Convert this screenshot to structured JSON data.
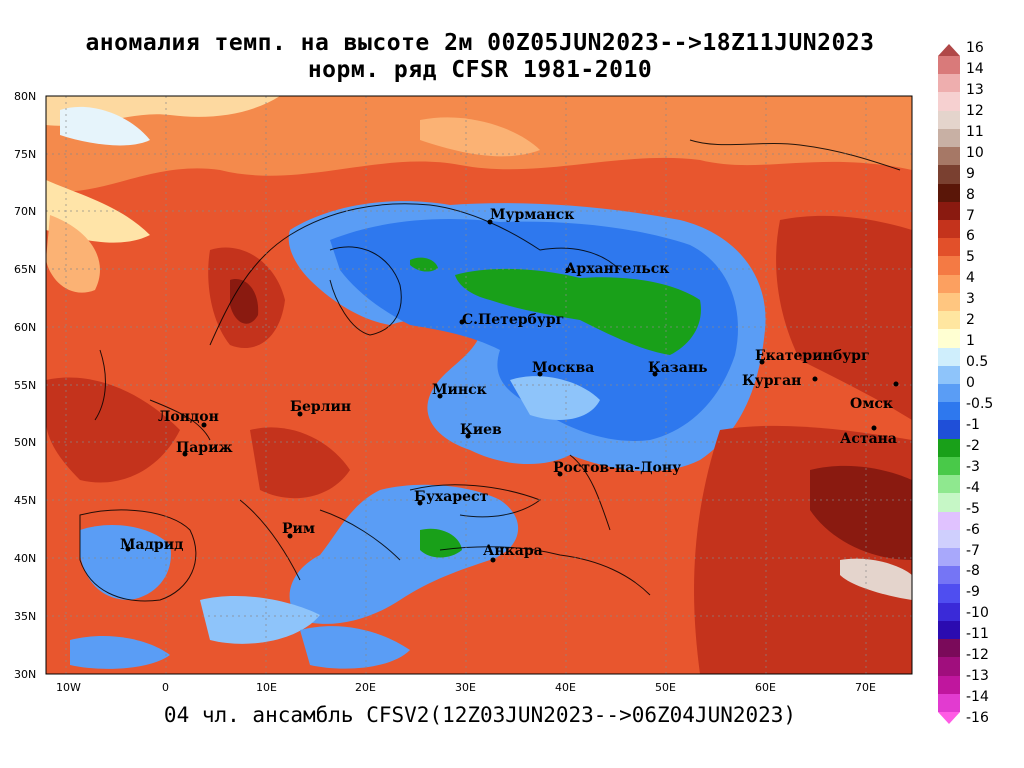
{
  "title": {
    "line1": "аномалия темп. на высоте 2м 00Z05JUN2023-->18Z11JUN2023",
    "line2": "норм. ряд CFSR 1981-2010"
  },
  "footer": "04 чл. ансамбль CFSV2(12Z03JUN2023-->06Z04JUN2023)",
  "map": {
    "lat_labels": [
      "80N",
      "75N",
      "70N",
      "65N",
      "60N",
      "55N",
      "50N",
      "45N",
      "40N",
      "35N",
      "30N"
    ],
    "lon_labels": [
      "10W",
      "0",
      "10E",
      "20E",
      "30E",
      "40E",
      "50E",
      "60E",
      "70E"
    ],
    "cities": [
      "Мурманск",
      "Архангельск",
      "С.Петербург",
      "Москва",
      "Казань",
      "Екатеринбург",
      "Курган",
      "Омск",
      "Астана",
      "Минск",
      "Киев",
      "Берлин",
      "Лондон",
      "Париж",
      "Ростов-на-Дону",
      "Бухарест",
      "Анкара",
      "Рим",
      "Мадрид"
    ]
  },
  "colorbar": {
    "labels": [
      "16",
      "14",
      "13",
      "12",
      "11",
      "10",
      "9",
      "8",
      "7",
      "6",
      "5",
      "4",
      "3",
      "2",
      "1",
      "0.5",
      "0",
      "-0.5",
      "-1",
      "-2",
      "-3",
      "-4",
      "-5",
      "-6",
      "-7",
      "-8",
      "-9",
      "-10",
      "-11",
      "-12",
      "-13",
      "-14",
      "-16"
    ],
    "colors": [
      "#ff5ce5",
      "#e23bd0",
      "#c0169e",
      "#a00e7d",
      "#7a0a5a",
      "#2b0bb0",
      "#3a2ad8",
      "#4f4ef0",
      "#7575f5",
      "#a8a8fb",
      "#cfcffd",
      "#e0c2ff",
      "#c6f7c6",
      "#8fe88f",
      "#49c949",
      "#19a019",
      "#1f4fd8",
      "#2e78ee",
      "#5a9df5",
      "#8ec4fa",
      "#cfeefc",
      "#ffffd2",
      "#ffe6a0",
      "#ffc680",
      "#fca060",
      "#f47a44",
      "#e2502a",
      "#c4331c",
      "#8a1a10",
      "#5a1608",
      "#7a4030",
      "#a67866",
      "#c8b0a4",
      "#e4d4cc",
      "#f6d0d0",
      "#eeaeae",
      "#d97a7a",
      "#b04848"
    ]
  }
}
